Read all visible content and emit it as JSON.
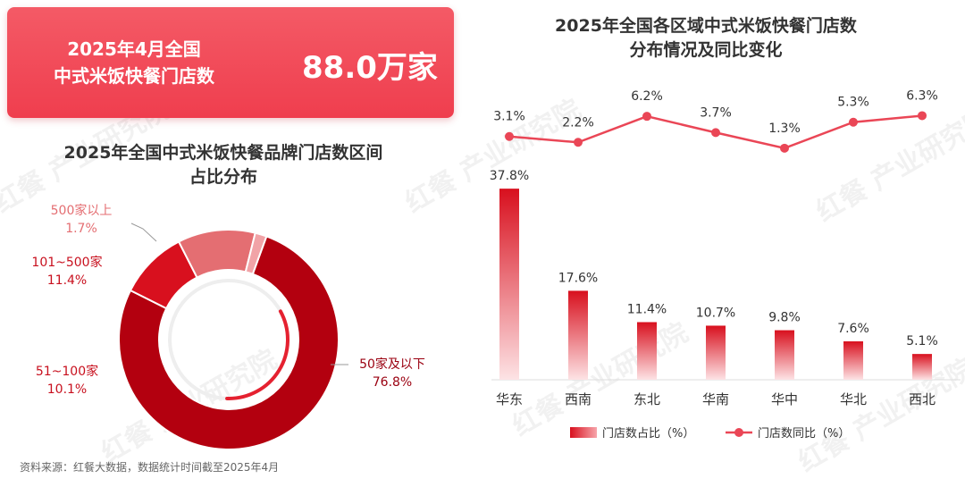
{
  "kpi": {
    "label_line1": "2025年4月全国",
    "label_line2": "中式米饭快餐门店数",
    "value": "88.0万家"
  },
  "watermark_text": "红餐 产业研究院",
  "source": "资料来源：红餐大数据，数据统计时间截至2025年4月",
  "colors": {
    "accent": "#ef3e4e",
    "dark_red": "#b3000f",
    "mid_red": "#d8101e",
    "pink": "#e46e72",
    "light_pink": "#f1a3a7",
    "line": "#ea4656"
  },
  "chart_data": [
    {
      "type": "pie",
      "title_line1": "2025年全国中式米饭快餐品牌门店数区间",
      "title_line2": "占比分布",
      "slices": [
        {
          "label": "50家及以下",
          "value": 76.8,
          "value_text": "76.8%",
          "color": "#b3000f"
        },
        {
          "label": "51~100家",
          "value": 10.1,
          "value_text": "10.1%",
          "color": "#d8101e"
        },
        {
          "label": "101~500家",
          "value": 11.4,
          "value_text": "11.4%",
          "color": "#e46e72"
        },
        {
          "label": "500家以上",
          "value": 1.7,
          "value_text": "1.7%",
          "color": "#f1a3a7"
        }
      ]
    },
    {
      "type": "bar",
      "title_line1": "2025年全国各区域中式米饭快餐门店数",
      "title_line2": "分布情况及同比变化",
      "categories": [
        "华东",
        "西南",
        "东北",
        "华南",
        "华中",
        "华北",
        "西北"
      ],
      "series": [
        {
          "name": "门店数占比（%）",
          "type": "bar",
          "values": [
            37.8,
            17.6,
            11.4,
            10.7,
            9.8,
            7.6,
            5.1
          ],
          "labels": [
            "37.8%",
            "17.6%",
            "11.4%",
            "10.7%",
            "9.8%",
            "7.6%",
            "5.1%"
          ]
        },
        {
          "name": "门店数同比（%）",
          "type": "line",
          "values": [
            3.1,
            2.2,
            6.2,
            3.7,
            1.3,
            5.3,
            6.3
          ],
          "labels": [
            "3.1%",
            "2.2%",
            "6.2%",
            "3.7%",
            "1.3%",
            "5.3%",
            "6.3%"
          ]
        }
      ],
      "legend_position": "bottom"
    }
  ]
}
